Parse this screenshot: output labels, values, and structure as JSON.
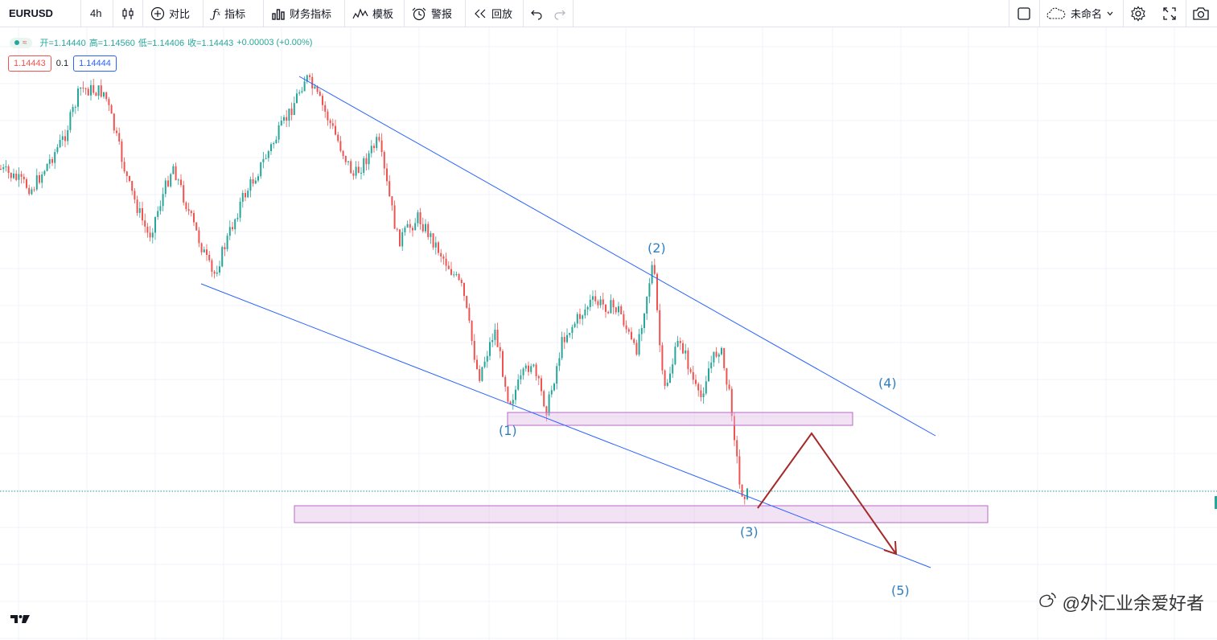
{
  "toolbar": {
    "symbol": "EURUSD",
    "interval": "4h",
    "compare_label": "对比",
    "indicators_label": "指标",
    "financials_label": "财务指标",
    "templates_label": "模板",
    "alerts_label": "警报",
    "replay_label": "回放",
    "layout_name": "未命名"
  },
  "legend": {
    "open": "开=1.14440",
    "high": "高=1.14560",
    "low": "低=1.14406",
    "close": "收=1.14443",
    "change": "+0.00003 (+0.00%)",
    "bid": "1.14443",
    "spread": "0.1",
    "ask": "1.14444"
  },
  "waves": {
    "w1": "(1)",
    "w2": "(2)",
    "w3": "(3)",
    "w4": "(4)",
    "w5": "(5)"
  },
  "watermark": "@外汇业余爱好者",
  "colors": {
    "up": "#26a69a",
    "down": "#ef5350",
    "trendline": "#2962ff",
    "zone": "#ba68c8",
    "arrow": "#a52a2a",
    "wave_label": "#2f7fc0"
  }
}
